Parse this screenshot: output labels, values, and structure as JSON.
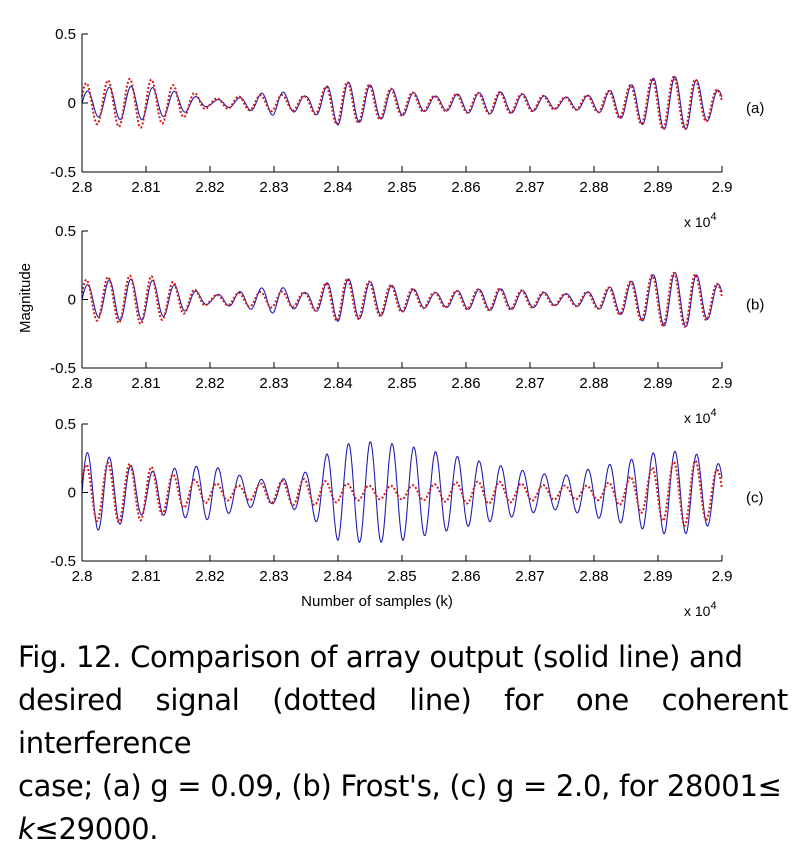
{
  "chart_data": [
    {
      "type": "line",
      "panel_label": "(a)",
      "x_range": [
        28000,
        29000
      ],
      "ylim": [
        -0.5,
        0.5
      ],
      "yticks": [
        "0.5",
        "0",
        "-0.5"
      ],
      "xticks": [
        "2.8",
        "2.81",
        "2.82",
        "2.83",
        "2.84",
        "2.85",
        "2.86",
        "2.87",
        "2.88",
        "2.89",
        "2.9"
      ],
      "x_multiplier": "x 10",
      "x_multiplier_exp": "4",
      "series": [
        {
          "style": "solid",
          "color": "#1f1fb0",
          "envelope_k": [
            28000,
            28050,
            28100,
            28150,
            28200,
            28250,
            28300,
            28350,
            28400,
            28450,
            28500,
            28550,
            28600,
            28650,
            28700,
            28750,
            28800,
            28850,
            28900,
            28950,
            29000
          ],
          "envelope_amp": [
            0.08,
            0.12,
            0.12,
            0.08,
            0.02,
            0.04,
            0.09,
            0.05,
            0.16,
            0.13,
            0.09,
            0.05,
            0.07,
            0.08,
            0.06,
            0.04,
            0.06,
            0.12,
            0.19,
            0.19,
            0.08
          ]
        },
        {
          "style": "dotted",
          "color": "#d81818",
          "envelope_k": [
            28000,
            28050,
            28100,
            28150,
            28200,
            28250,
            28300,
            28350,
            28400,
            28450,
            28500,
            28550,
            28600,
            28650,
            28700,
            28750,
            28800,
            28850,
            28900,
            28950,
            29000
          ],
          "envelope_amp": [
            0.14,
            0.17,
            0.18,
            0.12,
            0.03,
            0.05,
            0.06,
            0.05,
            0.16,
            0.13,
            0.09,
            0.05,
            0.07,
            0.08,
            0.06,
            0.04,
            0.06,
            0.12,
            0.19,
            0.19,
            0.08
          ]
        }
      ]
    },
    {
      "type": "line",
      "panel_label": "(b)",
      "x_range": [
        28000,
        29000
      ],
      "ylim": [
        -0.5,
        0.5
      ],
      "yticks": [
        "0.5",
        "0",
        "-0.5"
      ],
      "xticks": [
        "2.8",
        "2.81",
        "2.82",
        "2.83",
        "2.84",
        "2.85",
        "2.86",
        "2.87",
        "2.88",
        "2.89",
        "2.9"
      ],
      "x_multiplier": "x 10",
      "x_multiplier_exp": "4",
      "series": [
        {
          "style": "solid",
          "color": "#1f1fb0",
          "envelope_k": [
            28000,
            28050,
            28100,
            28150,
            28200,
            28250,
            28300,
            28350,
            28400,
            28450,
            28500,
            28550,
            28600,
            28650,
            28700,
            28750,
            28800,
            28850,
            28900,
            28950,
            29000
          ],
          "envelope_amp": [
            0.1,
            0.15,
            0.15,
            0.1,
            0.03,
            0.06,
            0.1,
            0.05,
            0.16,
            0.13,
            0.09,
            0.05,
            0.07,
            0.08,
            0.06,
            0.04,
            0.06,
            0.12,
            0.19,
            0.2,
            0.1
          ]
        },
        {
          "style": "dotted",
          "color": "#d81818",
          "envelope_k": [
            28000,
            28050,
            28100,
            28150,
            28200,
            28250,
            28300,
            28350,
            28400,
            28450,
            28500,
            28550,
            28600,
            28650,
            28700,
            28750,
            28800,
            28850,
            28900,
            28950,
            29000
          ],
          "envelope_amp": [
            0.14,
            0.17,
            0.18,
            0.12,
            0.03,
            0.05,
            0.06,
            0.05,
            0.16,
            0.13,
            0.09,
            0.05,
            0.07,
            0.08,
            0.06,
            0.04,
            0.06,
            0.12,
            0.19,
            0.2,
            0.1
          ]
        }
      ]
    },
    {
      "type": "line",
      "panel_label": "(c)",
      "x_range": [
        28000,
        29000
      ],
      "ylim": [
        -0.5,
        0.5
      ],
      "yticks": [
        "0.5",
        "0",
        "-0.5"
      ],
      "xticks": [
        "2.8",
        "2.81",
        "2.82",
        "2.83",
        "2.84",
        "2.85",
        "2.86",
        "2.87",
        "2.88",
        "2.89",
        "2.9"
      ],
      "x_multiplier": "x 10",
      "x_multiplier_exp": "4",
      "xlabel": "Number of samples (k)",
      "series": [
        {
          "style": "solid",
          "color": "#1f1fb0",
          "envelope_k": [
            28000,
            28050,
            28100,
            28150,
            28200,
            28250,
            28300,
            28350,
            28400,
            28450,
            28500,
            28550,
            28600,
            28650,
            28700,
            28750,
            28800,
            28850,
            28900,
            28950,
            29000
          ],
          "envelope_amp": [
            0.3,
            0.25,
            0.15,
            0.18,
            0.2,
            0.12,
            0.08,
            0.15,
            0.35,
            0.37,
            0.35,
            0.3,
            0.25,
            0.2,
            0.15,
            0.12,
            0.18,
            0.23,
            0.3,
            0.3,
            0.2
          ]
        },
        {
          "style": "dotted",
          "color": "#d81818",
          "envelope_k": [
            28000,
            28050,
            28100,
            28150,
            28200,
            28250,
            28300,
            28350,
            28400,
            28450,
            28500,
            28550,
            28600,
            28650,
            28700,
            28750,
            28800,
            28850,
            28900,
            28950,
            29000
          ],
          "envelope_amp": [
            0.2,
            0.22,
            0.2,
            0.12,
            0.07,
            0.05,
            0.08,
            0.1,
            0.07,
            0.05,
            0.05,
            0.06,
            0.08,
            0.08,
            0.06,
            0.05,
            0.05,
            0.1,
            0.2,
            0.25,
            0.15
          ]
        }
      ]
    }
  ],
  "ylabel": "Magnitude",
  "caption": {
    "line1": "Fig. 12. Comparison of array output (solid line) and",
    "line2": "desired signal (dotted line) for one coherent interference",
    "line3": "case; (a) g = 0.09, (b) Frost's, (c) g = 2.0, for 28001≤",
    "line4_var": "k",
    "line4_rest": "≤29000."
  }
}
